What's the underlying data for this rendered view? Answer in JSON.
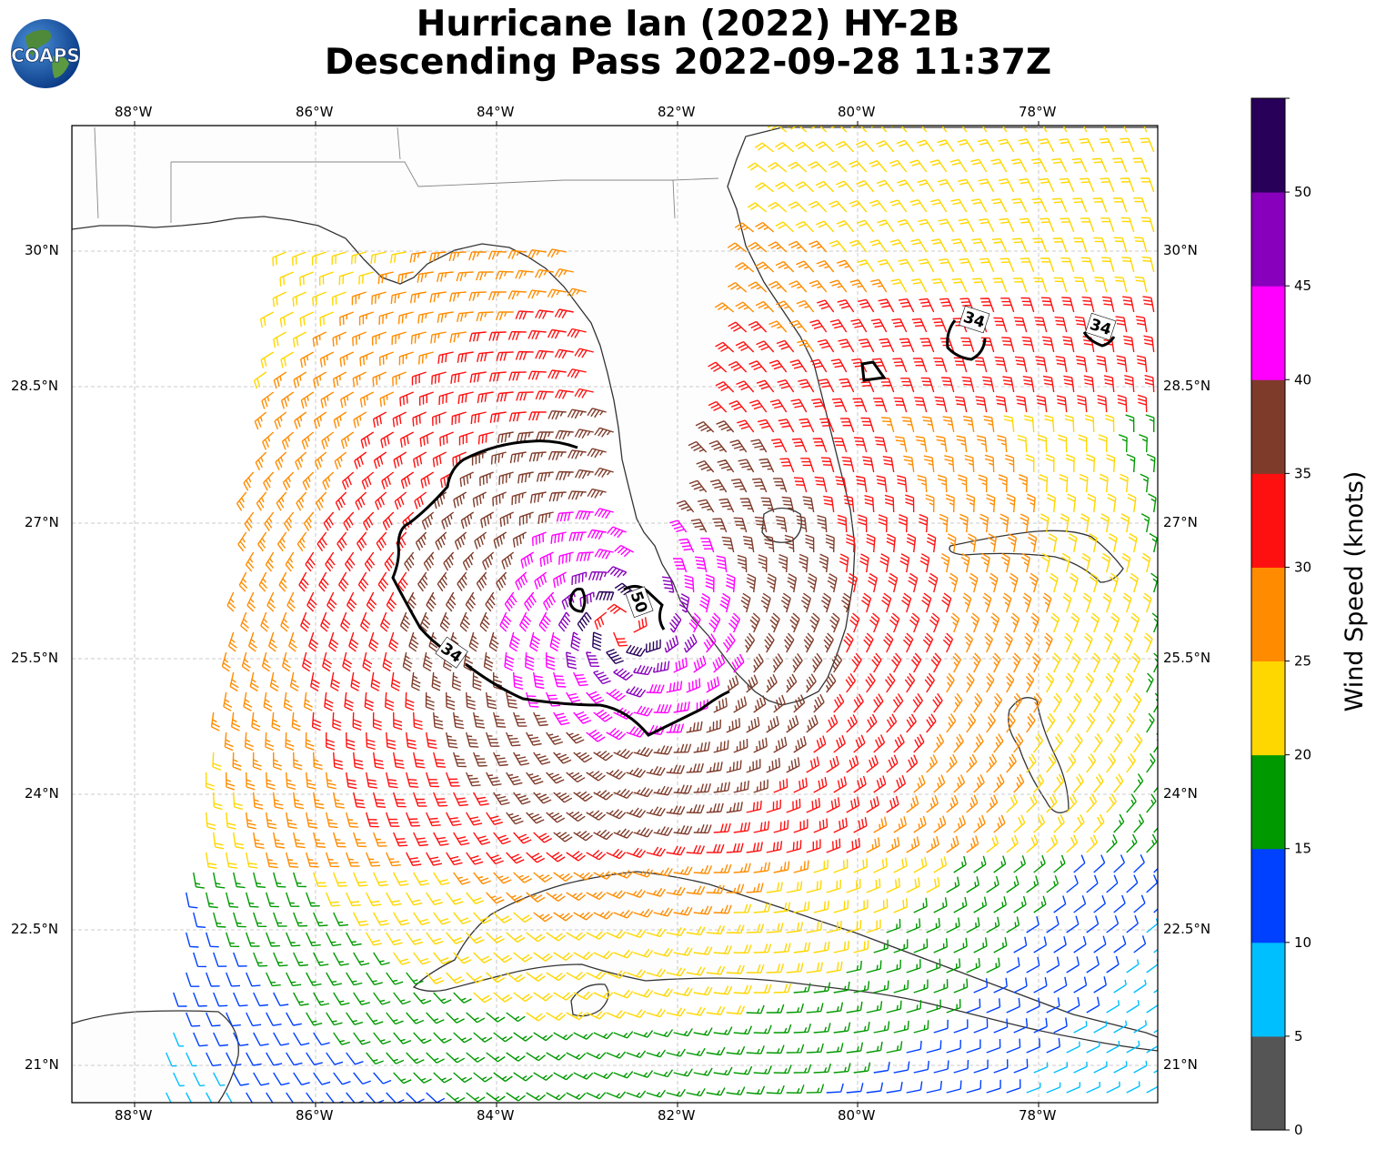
{
  "title": {
    "line1": "Hurricane Ian (2022) HY-2B",
    "line2": "Descending Pass 2022-09-28 11:37Z"
  },
  "logo": {
    "text": "COAPS"
  },
  "lon_labels": [
    "88°W",
    "86°W",
    "84°W",
    "82°W",
    "80°W",
    "78°W"
  ],
  "lat_labels": [
    "30°N",
    "28.5°N",
    "27°N",
    "25.5°N",
    "24°N",
    "22.5°N",
    "21°N"
  ],
  "contour_labels": [
    "34",
    "34",
    "34",
    "50"
  ],
  "colorbar": {
    "title": "Wind Speed (knots)",
    "ticks": [
      "0",
      "5",
      "10",
      "15",
      "20",
      "25",
      "30",
      "35",
      "40",
      "45",
      "50"
    ],
    "colors": [
      "#555555",
      "#00bfff",
      "#0040ff",
      "#009900",
      "#ffd700",
      "#ff8c00",
      "#ff1010",
      "#7f3b2a",
      "#ff00ff",
      "#8800bb",
      "#28005a"
    ]
  },
  "map_extent": {
    "lon": [
      -88.7,
      -76.7
    ],
    "lat": [
      20.6,
      31.4
    ]
  },
  "storm_center": {
    "lon": -82.6,
    "lat": 25.9
  },
  "land_color": "#fdfdfd",
  "coast_color": "#333333"
}
